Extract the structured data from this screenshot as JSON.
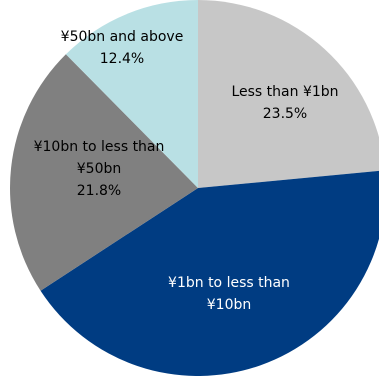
{
  "chart_data": {
    "type": "pie",
    "slices": [
      {
        "label_lines": [
          "Less than ¥1bn"
        ],
        "value_label": "23.5%",
        "value": 23.5,
        "color": "#c7c7c7",
        "text_color": "#000000"
      },
      {
        "label_lines": [
          "¥1bn to less than",
          "¥10bn"
        ],
        "value_label": "",
        "value": 42.3,
        "color": "#003c82",
        "text_color": "#ffffff"
      },
      {
        "label_lines": [
          "¥10bn to less than",
          "¥50bn"
        ],
        "value_label": "21.8%",
        "value": 21.8,
        "color": "#808080",
        "text_color": "#000000"
      },
      {
        "label_lines": [
          "¥50bn and above"
        ],
        "value_label": "12.4%",
        "value": 12.4,
        "color": "#b9e0e4",
        "text_color": "#000000"
      }
    ]
  }
}
